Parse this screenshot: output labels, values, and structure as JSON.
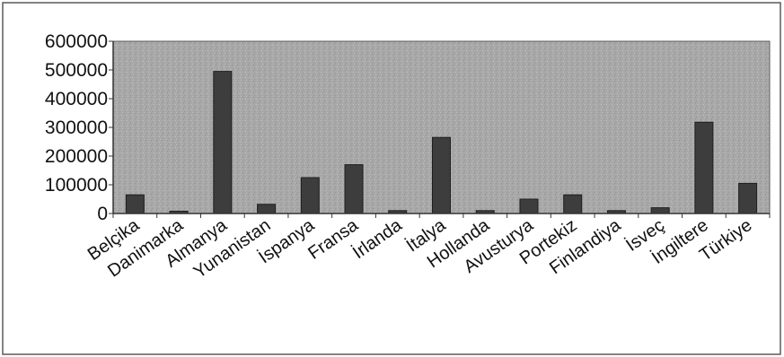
{
  "chart_data": {
    "type": "bar",
    "title": "",
    "xlabel": "",
    "ylabel": "",
    "categories": [
      "Belçika",
      "Danimarka",
      "Almanya",
      "Yunanistan",
      "İspanya",
      "Fransa",
      "İrlanda",
      "İtalya",
      "Hollanda",
      "Avusturya",
      "Portekiz",
      "Finlandiya",
      "İsveç",
      "İngiltere",
      "Türkiye"
    ],
    "values": [
      65000,
      8000,
      495000,
      32000,
      125000,
      170000,
      10000,
      265000,
      10000,
      50000,
      65000,
      10000,
      20000,
      318000,
      105000
    ],
    "ylim": [
      0,
      600000
    ],
    "yticks": [
      "0",
      "100000",
      "200000",
      "300000",
      "400000",
      "500000",
      "600000"
    ],
    "grid": false,
    "legend": "none",
    "colors": {
      "plot_background": "#a9a9a9",
      "bar": "#3d3d3d",
      "frame": "#5a5a5a",
      "axis": "#333333"
    }
  }
}
